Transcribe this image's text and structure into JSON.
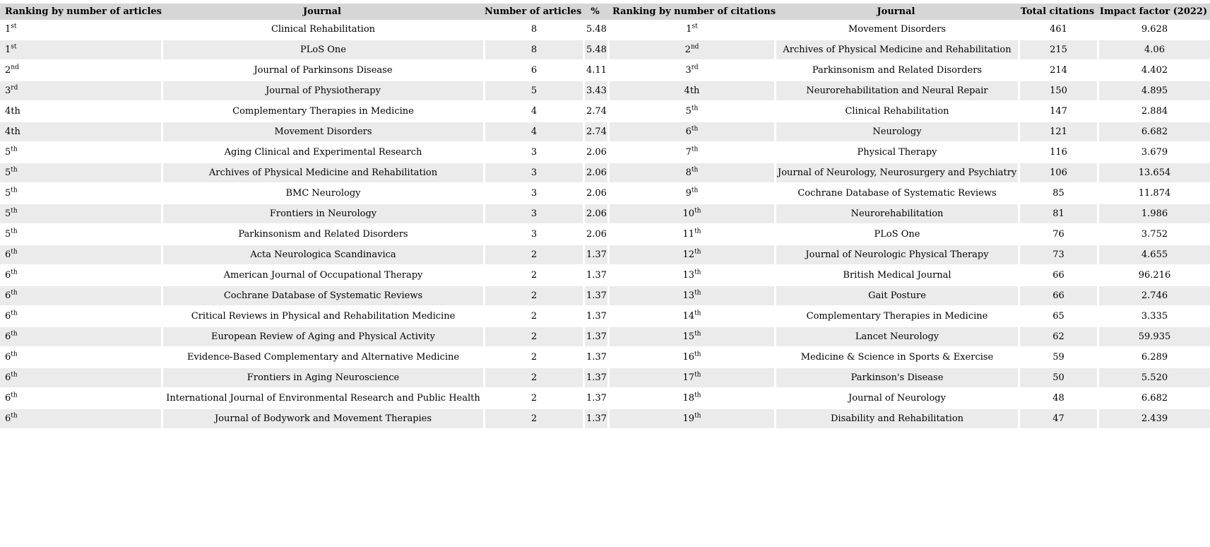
{
  "colors": {
    "page_bg": "#ffffff",
    "header_bg": "#d6d6d6",
    "stripe_bg": "#ebebeb",
    "text": "#000000"
  },
  "header": {
    "articles_rank": "Ranking by number of articles",
    "articles_journal": "Journal",
    "articles_count": "Number of articles",
    "articles_pct": "%",
    "citations_rank": "Ranking by number of citations",
    "citations_journal": "Journal",
    "citations_total": "Total citations",
    "citations_if": "Impact factor (2022)"
  },
  "articles": {
    "rows": [
      {
        "rank": "1",
        "suffix": "st",
        "sup": true,
        "journal": "Clinical Rehabilitation",
        "articles": "8",
        "pct": "5.48"
      },
      {
        "rank": "1",
        "suffix": "st",
        "sup": true,
        "journal": "PLoS One",
        "articles": "8",
        "pct": "5.48"
      },
      {
        "rank": "2",
        "suffix": "nd",
        "sup": true,
        "journal": "Journal of Parkinsons Disease",
        "articles": "6",
        "pct": "4.11"
      },
      {
        "rank": "3",
        "suffix": "rd",
        "sup": true,
        "journal": "Journal of Physiotherapy",
        "articles": "5",
        "pct": "3.43"
      },
      {
        "rank": "4",
        "suffix": "th",
        "sup": false,
        "journal": "Complementary Therapies in Medicine",
        "articles": "4",
        "pct": "2.74"
      },
      {
        "rank": "4",
        "suffix": "th",
        "sup": false,
        "journal": "Movement Disorders",
        "articles": "4",
        "pct": "2.74"
      },
      {
        "rank": "5",
        "suffix": "th",
        "sup": true,
        "journal": "Aging Clinical and Experimental Research",
        "articles": "3",
        "pct": "2.06"
      },
      {
        "rank": "5",
        "suffix": "th",
        "sup": true,
        "journal": "Archives of Physical Medicine and Rehabilitation",
        "articles": "3",
        "pct": "2.06"
      },
      {
        "rank": "5",
        "suffix": "th",
        "sup": true,
        "journal": "BMC Neurology",
        "articles": "3",
        "pct": "2.06"
      },
      {
        "rank": "5",
        "suffix": "th",
        "sup": true,
        "journal": "Frontiers in Neurology",
        "articles": "3",
        "pct": "2.06"
      },
      {
        "rank": "5",
        "suffix": "th",
        "sup": true,
        "journal": "Parkinsonism and Related Disorders",
        "articles": "3",
        "pct": "2.06"
      },
      {
        "rank": "6",
        "suffix": "th",
        "sup": true,
        "journal": "Acta Neurologica Scandinavica",
        "articles": "2",
        "pct": "1.37"
      },
      {
        "rank": "6",
        "suffix": "th",
        "sup": true,
        "journal": "American Journal of Occupational Therapy",
        "articles": "2",
        "pct": "1.37"
      },
      {
        "rank": "6",
        "suffix": "th",
        "sup": true,
        "journal": "Cochrane Database of Systematic Reviews",
        "articles": "2",
        "pct": "1.37"
      },
      {
        "rank": "6",
        "suffix": "th",
        "sup": true,
        "journal": "Critical Reviews in Physical and Rehabilitation Medicine",
        "articles": "2",
        "pct": "1.37"
      },
      {
        "rank": "6",
        "suffix": "th",
        "sup": true,
        "journal": "European Review of Aging and Physical Activity",
        "articles": "2",
        "pct": "1.37"
      },
      {
        "rank": "6",
        "suffix": "th",
        "sup": true,
        "journal": "Evidence-Based Complementary and Alternative Medicine",
        "articles": "2",
        "pct": "1.37"
      },
      {
        "rank": "6",
        "suffix": "th",
        "sup": true,
        "journal": "Frontiers in Aging Neuroscience",
        "articles": "2",
        "pct": "1.37"
      },
      {
        "rank": "6",
        "suffix": "th",
        "sup": true,
        "journal": "International Journal of Environmental Research and Public Health",
        "articles": "2",
        "pct": "1.37"
      },
      {
        "rank": "6",
        "suffix": "th",
        "sup": true,
        "journal": "Journal of Bodywork and Movement Therapies",
        "articles": "2",
        "pct": "1.37"
      }
    ]
  },
  "citations": {
    "rows": [
      {
        "rank": "1",
        "suffix": "st",
        "sup": true,
        "journal": "Movement Disorders",
        "citations": "461",
        "impact": "9.628"
      },
      {
        "rank": "2",
        "suffix": "nd",
        "sup": true,
        "journal": "Archives of Physical Medicine and Rehabilitation",
        "citations": "215",
        "impact": "4.06"
      },
      {
        "rank": "3",
        "suffix": "rd",
        "sup": true,
        "journal": "Parkinsonism and Related Disorders",
        "citations": "214",
        "impact": "4.402"
      },
      {
        "rank": "4",
        "suffix": "th",
        "sup": false,
        "journal": "Neurorehabilitation and Neural Repair",
        "citations": "150",
        "impact": "4.895"
      },
      {
        "rank": "5",
        "suffix": "th",
        "sup": true,
        "journal": "Clinical Rehabilitation",
        "citations": "147",
        "impact": "2.884"
      },
      {
        "rank": "6",
        "suffix": "th",
        "sup": true,
        "journal": "Neurology",
        "citations": "121",
        "impact": "6.682"
      },
      {
        "rank": "7",
        "suffix": "th",
        "sup": true,
        "journal": "Physical Therapy",
        "citations": "116",
        "impact": "3.679"
      },
      {
        "rank": "8",
        "suffix": "th",
        "sup": true,
        "journal": "Journal of Neurology, Neurosurgery and Psychiatry",
        "citations": "106",
        "impact": "13.654"
      },
      {
        "rank": "9",
        "suffix": "th",
        "sup": true,
        "journal": "Cochrane Database of Systematic Reviews",
        "citations": "85",
        "impact": "11.874"
      },
      {
        "rank": "10",
        "suffix": "th",
        "sup": true,
        "journal": "Neurorehabilitation",
        "citations": "81",
        "impact": "1.986"
      },
      {
        "rank": "11",
        "suffix": "th",
        "sup": true,
        "journal": "PLoS One",
        "citations": "76",
        "impact": "3.752"
      },
      {
        "rank": "12",
        "suffix": "th",
        "sup": true,
        "journal": "Journal of Neurologic Physical Therapy",
        "citations": "73",
        "impact": "4.655"
      },
      {
        "rank": "13",
        "suffix": "th",
        "sup": true,
        "journal": "British Medical Journal",
        "citations": "66",
        "impact": "96.216"
      },
      {
        "rank": "13",
        "suffix": "th",
        "sup": true,
        "journal": "Gait Posture",
        "citations": "66",
        "impact": "2.746"
      },
      {
        "rank": "14",
        "suffix": "th",
        "sup": true,
        "journal": "Complementary Therapies in Medicine",
        "citations": "65",
        "impact": "3.335"
      },
      {
        "rank": "15",
        "suffix": "th",
        "sup": true,
        "journal": "Lancet Neurology",
        "citations": "62",
        "impact": "59.935"
      },
      {
        "rank": "16",
        "suffix": "th",
        "sup": true,
        "journal": "Medicine & Science in Sports & Exercise",
        "citations": "59",
        "impact": "6.289"
      },
      {
        "rank": "17",
        "suffix": "th",
        "sup": true,
        "journal": "Parkinson's Disease",
        "citations": "50",
        "impact": "5.520"
      },
      {
        "rank": "18",
        "suffix": "th",
        "sup": true,
        "journal": "Journal of Neurology",
        "citations": "48",
        "impact": "6.682"
      },
      {
        "rank": "19",
        "suffix": "th",
        "sup": true,
        "journal": "Disability and Rehabilitation",
        "citations": "47",
        "impact": "2.439"
      }
    ]
  }
}
